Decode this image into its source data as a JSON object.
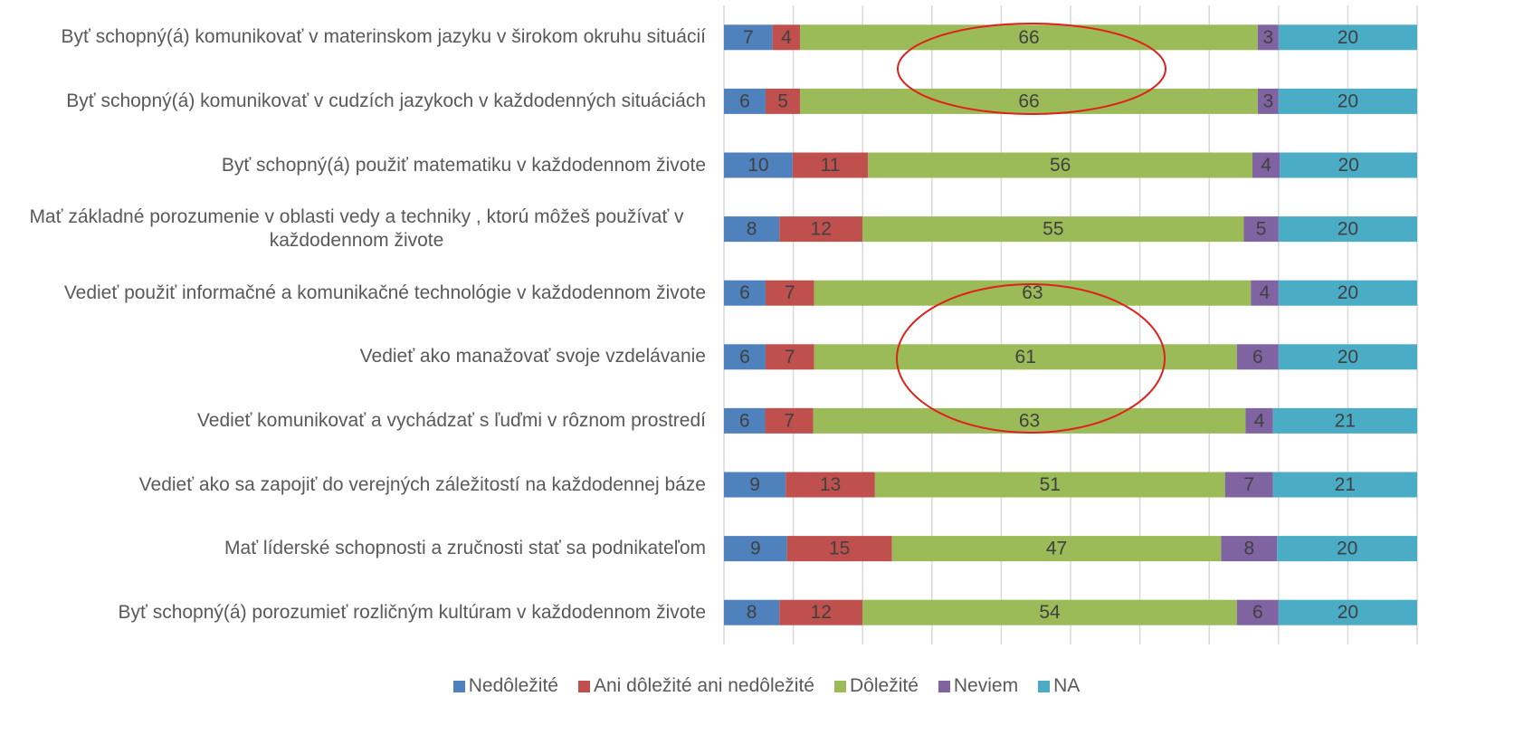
{
  "chart_data": {
    "type": "bar",
    "orientation": "horizontal",
    "stacking": "percent",
    "categories": [
      "Byť schopný(á) komunikovať v materinskom jazyku v širokom okruhu situácií",
      "Byť schopný(á) komunikovať v cudzích jazykoch v každodenných situáciách",
      "Byť schopný(á) použiť matematiku v každodennom živote",
      "Mať základné porozumenie v oblasti vedy a techniky , ktorú môžeš používať v každodennom živote",
      "Vedieť použiť informačné a komunikačné technológie v každodennom živote",
      "Vedieť ako manažovať svoje vzdelávanie",
      "Vedieť komunikovať a vychádzať s ľuďmi v rôznom prostredí",
      "Vedieť ako sa zapojiť do verejných záležitostí na každodennej báze",
      "Mať líderské schopnosti a zručnosti stať sa podnikateľom",
      "Byť schopný(á) porozumieť rozličným kultúram v každodennom živote"
    ],
    "series": [
      {
        "name": "Nedôležité",
        "color": "#4f81bd",
        "values": [
          7,
          6,
          10,
          8,
          6,
          6,
          6,
          9,
          9,
          8
        ]
      },
      {
        "name": "Ani dôležité ani nedôležité",
        "color": "#c0504d",
        "values": [
          4,
          5,
          11,
          12,
          7,
          7,
          7,
          13,
          15,
          12
        ]
      },
      {
        "name": "Dôležité",
        "color": "#9bbb59",
        "values": [
          66,
          66,
          56,
          55,
          63,
          61,
          63,
          51,
          47,
          54
        ]
      },
      {
        "name": "Neviem",
        "color": "#8064a2",
        "values": [
          3,
          3,
          4,
          5,
          4,
          6,
          4,
          7,
          8,
          6
        ]
      },
      {
        "name": "NA",
        "color": "#4bacc6",
        "values": [
          20,
          20,
          20,
          20,
          20,
          20,
          21,
          21,
          20,
          20
        ]
      }
    ],
    "xlim": [
      0,
      100
    ],
    "xticks": [
      0,
      10,
      20,
      30,
      40,
      50,
      60,
      70,
      80,
      90,
      100
    ],
    "grid": true,
    "legend": "bottom"
  }
}
